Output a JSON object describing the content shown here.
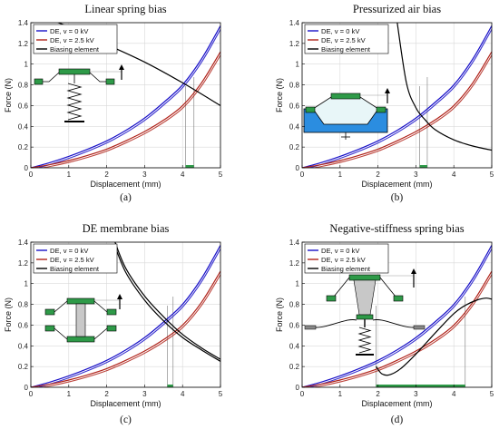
{
  "chart_data": [
    {
      "type": "line",
      "title": "Linear spring bias",
      "sublabel": "(a)",
      "xlabel": "Displacement (mm)",
      "ylabel": "Force (N)",
      "xlim": [
        0,
        5
      ],
      "ylim": [
        0,
        1.4
      ],
      "xticks": [
        "0",
        "1",
        "2",
        "3",
        "4",
        "5"
      ],
      "yticks": [
        "0",
        "0.2",
        "0.4",
        "0.6",
        "0.8",
        "1",
        "1.2",
        "1.4"
      ],
      "grid": true,
      "legend": {
        "placement": "top-left",
        "entries": [
          "DE, v = 0 kV",
          "DE, v = 2.5 kV",
          "Biasing element"
        ]
      },
      "colors": {
        "de_0kv": "#1a12c8",
        "de_25kv": "#b0231a",
        "bias": "#000000",
        "stroke_band": "#2e9a48",
        "actuator": "#2e9a48"
      },
      "series": [
        {
          "name": "DE, v = 0 kV",
          "x": [
            0,
            0.5,
            1,
            1.5,
            2,
            2.5,
            3,
            3.5,
            4,
            4.5,
            5
          ],
          "y": [
            0,
            0.05,
            0.11,
            0.18,
            0.26,
            0.36,
            0.48,
            0.63,
            0.8,
            1.05,
            1.37
          ]
        },
        {
          "name": "DE, v = 2.5 kV",
          "x": [
            0,
            0.5,
            1,
            1.5,
            2,
            2.5,
            3,
            3.5,
            4,
            4.5,
            5
          ],
          "y": [
            0,
            0.03,
            0.07,
            0.12,
            0.18,
            0.26,
            0.35,
            0.46,
            0.6,
            0.82,
            1.12
          ]
        },
        {
          "name": "Biasing element",
          "x": [
            0.2,
            1,
            2,
            3,
            4,
            5
          ],
          "y": [
            1.47,
            1.36,
            1.19,
            1.02,
            0.82,
            0.6
          ]
        }
      ],
      "stroke_range": [
        4.08,
        4.3
      ],
      "mechanism": "spring"
    },
    {
      "type": "line",
      "title": "Pressurized air bias",
      "sublabel": "(b)",
      "xlabel": "Displacement (mm)",
      "ylabel": "Force (N)",
      "xlim": [
        0,
        5
      ],
      "ylim": [
        0,
        1.4
      ],
      "xticks": [
        "0",
        "1",
        "2",
        "3",
        "4",
        "5"
      ],
      "yticks": [
        "0",
        "0.2",
        "0.4",
        "0.6",
        "0.8",
        "1",
        "1.2",
        "1.4"
      ],
      "grid": true,
      "legend": {
        "placement": "top-left",
        "entries": [
          "DE, v = 0 kV",
          "DE, v = 2.5 kV",
          "Biasing element"
        ]
      },
      "colors": {
        "de_0kv": "#1a12c8",
        "de_25kv": "#b0231a",
        "bias": "#000000",
        "stroke_band": "#2e9a48",
        "actuator": "#2e9a48",
        "air": "#2b8de0"
      },
      "series": [
        {
          "name": "DE, v = 0 kV",
          "x": [
            0,
            0.5,
            1,
            1.5,
            2,
            2.5,
            3,
            3.5,
            4,
            4.5,
            5
          ],
          "y": [
            0,
            0.05,
            0.11,
            0.18,
            0.26,
            0.36,
            0.48,
            0.63,
            0.8,
            1.05,
            1.37
          ]
        },
        {
          "name": "DE, v = 2.5 kV",
          "x": [
            0,
            0.5,
            1,
            1.5,
            2,
            2.5,
            3,
            3.5,
            4,
            4.5,
            5
          ],
          "y": [
            0,
            0.03,
            0.07,
            0.12,
            0.18,
            0.26,
            0.35,
            0.46,
            0.6,
            0.82,
            1.12
          ]
        },
        {
          "name": "Biasing element",
          "x": [
            2.5,
            2.75,
            3,
            3.25,
            3.5,
            4,
            4.5,
            5
          ],
          "y": [
            1.42,
            0.82,
            0.58,
            0.46,
            0.37,
            0.27,
            0.21,
            0.17
          ]
        }
      ],
      "stroke_range": [
        3.1,
        3.3
      ],
      "mechanism": "air"
    },
    {
      "type": "line",
      "title": "DE membrane bias",
      "sublabel": "(c)",
      "xlabel": "Displacement (mm)",
      "ylabel": "Force (N)",
      "xlim": [
        0,
        5
      ],
      "ylim": [
        0,
        1.4
      ],
      "xticks": [
        "0",
        "1",
        "2",
        "3",
        "4",
        "5"
      ],
      "yticks": [
        "0",
        "0.2",
        "0.4",
        "0.6",
        "0.8",
        "1",
        "1.2",
        "1.4"
      ],
      "grid": true,
      "legend": {
        "placement": "top-left",
        "entries": [
          "DE, v = 0 kV",
          "DE, v = 2.5 kV",
          "Biasing element"
        ]
      },
      "colors": {
        "de_0kv": "#1a12c8",
        "de_25kv": "#b0231a",
        "bias": "#000000",
        "stroke_band": "#2e9a48",
        "actuator": "#2e9a48"
      },
      "series": [
        {
          "name": "DE, v = 0 kV",
          "x": [
            0,
            0.5,
            1,
            1.5,
            2,
            2.5,
            3,
            3.5,
            4,
            4.5,
            5
          ],
          "y": [
            0,
            0.05,
            0.11,
            0.18,
            0.26,
            0.36,
            0.48,
            0.63,
            0.8,
            1.05,
            1.37
          ]
        },
        {
          "name": "DE, v = 2.5 kV",
          "x": [
            0,
            0.5,
            1,
            1.5,
            2,
            2.5,
            3,
            3.5,
            4,
            4.5,
            5
          ],
          "y": [
            0,
            0.03,
            0.07,
            0.12,
            0.18,
            0.26,
            0.35,
            0.46,
            0.6,
            0.82,
            1.12
          ]
        },
        {
          "name": "Biasing element",
          "x": [
            2.2,
            2.5,
            3,
            3.5,
            4,
            4.5,
            5
          ],
          "y": [
            1.42,
            1.15,
            0.88,
            0.68,
            0.51,
            0.38,
            0.27
          ]
        },
        {
          "name": "Biasing element",
          "x": [
            2.2,
            2.5,
            3,
            3.5,
            4,
            4.5,
            5
          ],
          "y": [
            1.38,
            1.11,
            0.84,
            0.64,
            0.48,
            0.36,
            0.25
          ]
        }
      ],
      "stroke_range": [
        3.6,
        3.75
      ],
      "mechanism": "membrane"
    },
    {
      "type": "line",
      "title": "Negative-stiffness spring bias",
      "sublabel": "(d)",
      "xlabel": "Displacement (mm)",
      "ylabel": "Force (N)",
      "xlim": [
        0,
        5
      ],
      "ylim": [
        0,
        1.4
      ],
      "xticks": [
        "0",
        "1",
        "2",
        "3",
        "4",
        "5"
      ],
      "yticks": [
        "0",
        "0.2",
        "0.4",
        "0.6",
        "0.8",
        "1",
        "1.2",
        "1.4"
      ],
      "grid": true,
      "legend": {
        "placement": "top-left",
        "entries": [
          "DE, v = 0 kV",
          "DE, v = 2.5 kV",
          "Biasing element"
        ]
      },
      "colors": {
        "de_0kv": "#1a12c8",
        "de_25kv": "#b0231a",
        "bias": "#000000",
        "stroke_band": "#2e9a48",
        "actuator": "#2e9a48",
        "ground": "#888888"
      },
      "series": [
        {
          "name": "DE, v = 0 kV",
          "x": [
            0,
            0.5,
            1,
            1.5,
            2,
            2.5,
            3,
            3.5,
            4,
            4.5,
            5
          ],
          "y": [
            0,
            0.05,
            0.11,
            0.18,
            0.26,
            0.36,
            0.48,
            0.63,
            0.8,
            1.05,
            1.37
          ]
        },
        {
          "name": "DE, v = 2.5 kV",
          "x": [
            0,
            0.5,
            1,
            1.5,
            2,
            2.5,
            3,
            3.5,
            4,
            4.5,
            5
          ],
          "y": [
            0,
            0.03,
            0.07,
            0.12,
            0.18,
            0.26,
            0.35,
            0.46,
            0.6,
            0.82,
            1.12
          ]
        },
        {
          "name": "Biasing element",
          "x": [
            1.95,
            2.1,
            2.3,
            2.6,
            3,
            3.5,
            4,
            4.3,
            4.6,
            4.85,
            5
          ],
          "y": [
            0.2,
            0.13,
            0.12,
            0.18,
            0.32,
            0.52,
            0.71,
            0.79,
            0.84,
            0.86,
            0.85
          ]
        }
      ],
      "stroke_range": [
        1.95,
        4.3
      ],
      "mechanism": "negative-stiffness"
    }
  ]
}
